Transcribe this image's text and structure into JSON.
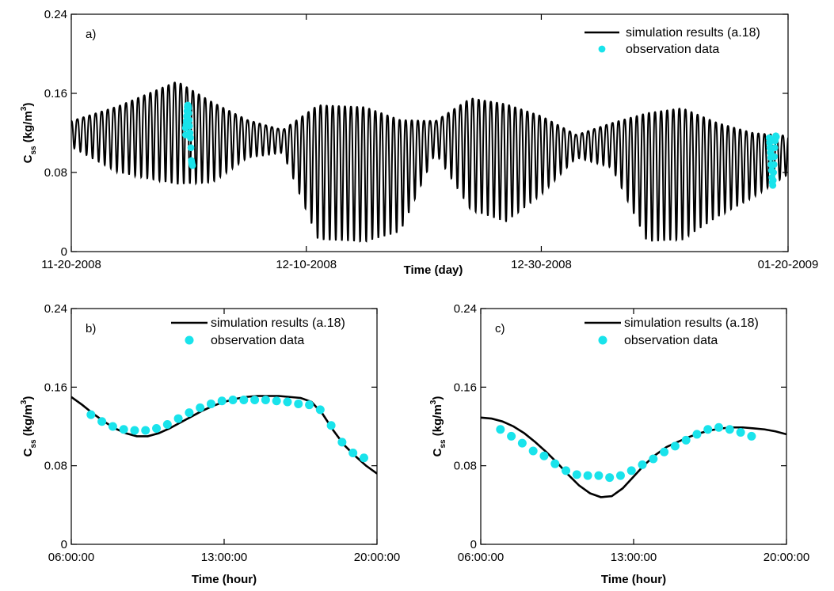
{
  "colors": {
    "simulation": "#000000",
    "observation": "#19e3eb",
    "axes": "#000000"
  },
  "chart_data": [
    {
      "id": "a",
      "type": "line",
      "panel_label": "a)",
      "xlabel": "Time (day)",
      "ylabel": {
        "main": "C",
        "sub": "ss",
        "unit_pre": " (kg/m",
        "unit_sup": "3",
        "unit_post": ")"
      },
      "xlim": [
        0,
        61
      ],
      "ylim": [
        0,
        0.24
      ],
      "xticks": [
        0,
        20,
        40,
        61
      ],
      "xtick_labels": [
        "11-20-2008",
        "12-10-2008",
        "12-30-2008",
        "01-20-2009"
      ],
      "yticks": [
        0,
        0.08,
        0.16,
        0.24
      ],
      "ytick_labels": [
        "0",
        "0.08",
        "0.16",
        "0.24"
      ],
      "legend_position": "top-right",
      "series": [
        {
          "name": "simulation results (a.18)",
          "kind": "semidiurnal-tide",
          "period_days": 0.5175,
          "envelope_day": [
            0,
            4,
            9,
            12,
            15,
            18,
            21,
            25,
            28,
            31,
            34,
            37,
            40,
            43,
            46,
            49,
            52,
            55,
            58,
            61
          ],
          "envelope_max": [
            0.132,
            0.147,
            0.172,
            0.151,
            0.133,
            0.123,
            0.148,
            0.146,
            0.133,
            0.132,
            0.155,
            0.149,
            0.137,
            0.118,
            0.13,
            0.14,
            0.145,
            0.13,
            0.12,
            0.117
          ],
          "envelope_min": [
            0.106,
            0.08,
            0.068,
            0.07,
            0.095,
            0.1,
            0.012,
            0.01,
            0.02,
            0.1,
            0.042,
            0.03,
            0.058,
            0.095,
            0.085,
            0.01,
            0.012,
            0.035,
            0.055,
            0.078
          ]
        },
        {
          "name": "observation data",
          "x": [
            9.72,
            9.74,
            9.77,
            9.8,
            9.82,
            9.85,
            9.88,
            9.9,
            9.93,
            9.96,
            9.98,
            10.0,
            10.03,
            10.06,
            10.1,
            10.14,
            10.18,
            10.22,
            10.25,
            10.28,
            10.31,
            59.4,
            59.43,
            59.46,
            59.5,
            59.53,
            59.56,
            59.6,
            59.63,
            59.66,
            59.7,
            59.73,
            59.76,
            59.8,
            59.83,
            59.86,
            59.9,
            59.93,
            59.96,
            60.0
          ],
          "y": [
            0.125,
            0.118,
            0.128,
            0.132,
            0.137,
            0.142,
            0.146,
            0.148,
            0.148,
            0.147,
            0.145,
            0.14,
            0.133,
            0.127,
            0.12,
            0.115,
            0.105,
            0.092,
            0.09,
            0.088,
            0.087,
            0.115,
            0.11,
            0.105,
            0.1,
            0.095,
            0.088,
            0.082,
            0.075,
            0.07,
            0.067,
            0.072,
            0.08,
            0.088,
            0.096,
            0.105,
            0.112,
            0.115,
            0.117,
            0.116
          ]
        }
      ]
    },
    {
      "id": "b",
      "type": "line",
      "panel_label": "b)",
      "xlabel": "Time (hour)",
      "ylabel": {
        "main": "C",
        "sub": "ss",
        "unit_pre": " (kg/m",
        "unit_sup": "3",
        "unit_post": ")"
      },
      "xlim": [
        6,
        20
      ],
      "ylim": [
        0,
        0.24
      ],
      "xticks": [
        6,
        13,
        20
      ],
      "xtick_labels": [
        "06:00:00",
        "13:00:00",
        "20:00:00"
      ],
      "yticks": [
        0,
        0.08,
        0.16,
        0.24
      ],
      "ytick_labels": [
        "0",
        "0.08",
        "0.16",
        "0.24"
      ],
      "legend_position": "top-right",
      "series": [
        {
          "name": "simulation results (a.18)",
          "x": [
            6,
            6.5,
            7,
            7.5,
            8,
            8.5,
            9,
            9.5,
            10,
            10.5,
            11,
            11.5,
            12,
            12.5,
            13,
            13.5,
            14,
            14.5,
            15,
            15.5,
            16,
            16.5,
            17,
            17.5,
            18,
            18.5,
            19,
            19.5,
            20
          ],
          "y": [
            0.15,
            0.142,
            0.133,
            0.125,
            0.118,
            0.113,
            0.11,
            0.11,
            0.113,
            0.118,
            0.124,
            0.13,
            0.136,
            0.141,
            0.145,
            0.148,
            0.15,
            0.151,
            0.151,
            0.151,
            0.15,
            0.149,
            0.145,
            0.133,
            0.116,
            0.101,
            0.09,
            0.08,
            0.072
          ]
        },
        {
          "name": "observation data",
          "x": [
            6.9,
            7.4,
            7.9,
            8.4,
            8.9,
            9.4,
            9.9,
            10.4,
            10.9,
            11.4,
            11.9,
            12.4,
            12.9,
            13.4,
            13.9,
            14.4,
            14.9,
            15.4,
            15.9,
            16.4,
            16.9,
            17.4,
            17.9,
            18.4,
            18.9,
            19.4
          ],
          "y": [
            0.132,
            0.125,
            0.12,
            0.117,
            0.116,
            0.116,
            0.118,
            0.122,
            0.128,
            0.134,
            0.139,
            0.143,
            0.146,
            0.147,
            0.147,
            0.147,
            0.147,
            0.146,
            0.145,
            0.143,
            0.142,
            0.137,
            0.121,
            0.104,
            0.093,
            0.088
          ]
        }
      ]
    },
    {
      "id": "c",
      "type": "line",
      "panel_label": "c)",
      "xlabel": "Time (hour)",
      "ylabel": {
        "main": "C",
        "sub": "ss",
        "unit_pre": " (kg/m",
        "unit_sup": "3",
        "unit_post": ")"
      },
      "xlim": [
        6,
        20
      ],
      "ylim": [
        0,
        0.24
      ],
      "xticks": [
        6,
        13,
        20
      ],
      "xtick_labels": [
        "06:00:00",
        "13:00:00",
        "20:00:00"
      ],
      "yticks": [
        0,
        0.08,
        0.16,
        0.24
      ],
      "ytick_labels": [
        "0",
        "0.08",
        "0.16",
        "0.24"
      ],
      "legend_position": "top-right",
      "series": [
        {
          "name": "simulation results (a.18)",
          "x": [
            6,
            6.5,
            7,
            7.5,
            8,
            8.5,
            9,
            9.5,
            10,
            10.5,
            11,
            11.5,
            12,
            12.5,
            13,
            13.5,
            14,
            14.5,
            15,
            15.5,
            16,
            16.5,
            17,
            17.5,
            18,
            18.5,
            19,
            19.5,
            20
          ],
          "y": [
            0.129,
            0.128,
            0.125,
            0.12,
            0.113,
            0.104,
            0.094,
            0.083,
            0.071,
            0.06,
            0.052,
            0.048,
            0.049,
            0.057,
            0.069,
            0.081,
            0.091,
            0.099,
            0.104,
            0.109,
            0.113,
            0.116,
            0.118,
            0.119,
            0.119,
            0.118,
            0.117,
            0.115,
            0.112
          ]
        },
        {
          "name": "observation data",
          "x": [
            6.9,
            7.4,
            7.9,
            8.4,
            8.9,
            9.4,
            9.9,
            10.4,
            10.9,
            11.4,
            11.9,
            12.4,
            12.9,
            13.4,
            13.9,
            14.4,
            14.9,
            15.4,
            15.9,
            16.4,
            16.9,
            17.4,
            17.9,
            18.4
          ],
          "y": [
            0.117,
            0.11,
            0.103,
            0.095,
            0.09,
            0.082,
            0.075,
            0.071,
            0.07,
            0.07,
            0.068,
            0.07,
            0.075,
            0.081,
            0.087,
            0.094,
            0.1,
            0.106,
            0.112,
            0.117,
            0.119,
            0.117,
            0.114,
            0.11
          ]
        }
      ]
    }
  ]
}
